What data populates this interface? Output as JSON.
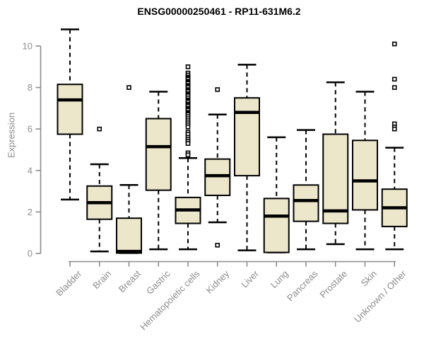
{
  "chart_data": {
    "type": "box",
    "title": "ENSG00000250461 - RP11-631M6.2",
    "xlabel": "",
    "ylabel": "Expression",
    "ylim": [
      0,
      10
    ],
    "yticks": [
      0,
      2,
      4,
      6,
      8,
      10
    ],
    "grid": false,
    "legend": "none",
    "categories": [
      "Bladder",
      "Brain",
      "Breast",
      "Gastric",
      "Hematopoietic cells",
      "Kidney",
      "Liver",
      "Lung",
      "Pancreas",
      "Prostate",
      "Skin",
      "Unknown / Other"
    ],
    "series": [
      {
        "name": "Bladder",
        "whisker_low": 2.6,
        "q1": 5.75,
        "median": 7.4,
        "q3": 8.15,
        "whisker_high": 10.8,
        "outliers": []
      },
      {
        "name": "Brain",
        "whisker_low": 0.1,
        "q1": 1.65,
        "median": 2.45,
        "q3": 3.25,
        "whisker_high": 4.3,
        "outliers": [
          6.0
        ]
      },
      {
        "name": "Breast",
        "whisker_low": 0.02,
        "q1": 0.02,
        "median": 0.1,
        "q3": 1.7,
        "whisker_high": 3.3,
        "outliers": [
          8.0
        ]
      },
      {
        "name": "Gastric",
        "whisker_low": 0.2,
        "q1": 3.05,
        "median": 5.15,
        "q3": 6.5,
        "whisker_high": 7.8,
        "outliers": []
      },
      {
        "name": "Hematopoietic cells",
        "whisker_low": 0.2,
        "q1": 1.45,
        "median": 2.1,
        "q3": 2.7,
        "whisker_high": 4.6,
        "outliers": [
          9.0,
          8.7,
          8.6,
          8.5,
          8.45,
          8.4,
          8.3,
          8.25,
          8.2,
          8.1,
          8.05,
          8.0,
          7.9,
          7.85,
          7.8,
          7.7,
          7.65,
          7.6,
          7.5,
          7.4,
          7.35,
          7.3,
          7.2,
          7.15,
          7.1,
          7.0,
          6.95,
          6.9,
          6.8,
          6.75,
          6.7,
          6.6,
          6.5,
          6.4,
          6.3,
          6.2,
          6.1,
          5.85,
          5.75,
          5.6,
          5.5,
          5.4,
          5.3,
          4.85,
          4.75
        ]
      },
      {
        "name": "Kidney",
        "whisker_low": 1.5,
        "q1": 2.8,
        "median": 3.75,
        "q3": 4.55,
        "whisker_high": 6.7,
        "outliers": [
          7.9,
          0.4
        ]
      },
      {
        "name": "Liver",
        "whisker_low": 0.15,
        "q1": 3.75,
        "median": 6.8,
        "q3": 7.5,
        "whisker_high": 9.1,
        "outliers": []
      },
      {
        "name": "Lung",
        "whisker_low": 0.05,
        "q1": 0.05,
        "median": 1.8,
        "q3": 2.65,
        "whisker_high": 5.6,
        "outliers": []
      },
      {
        "name": "Pancreas",
        "whisker_low": 0.2,
        "q1": 1.55,
        "median": 2.55,
        "q3": 3.3,
        "whisker_high": 5.95,
        "outliers": []
      },
      {
        "name": "Prostate",
        "whisker_low": 0.45,
        "q1": 1.45,
        "median": 2.05,
        "q3": 5.75,
        "whisker_high": 8.25,
        "outliers": []
      },
      {
        "name": "Skin",
        "whisker_low": 0.2,
        "q1": 2.1,
        "median": 3.5,
        "q3": 5.45,
        "whisker_high": 7.8,
        "outliers": []
      },
      {
        "name": "Unknown / Other",
        "whisker_low": 0.2,
        "q1": 1.3,
        "median": 2.2,
        "q3": 3.1,
        "whisker_high": 5.1,
        "outliers": [
          10.1,
          8.4,
          8.0,
          6.25,
          6.1,
          6.0
        ]
      }
    ],
    "colors": {
      "box_fill": "#ECE7CB",
      "box_stroke": "#000000",
      "median": "#000000",
      "whisker": "#000000",
      "outlier_stroke": "#000000",
      "outlier_fill": "#FFFFFF",
      "axis": "#8C8C8C",
      "tick_label": "#8C8C8C",
      "title": "#000000",
      "background": "#FFFFFF"
    }
  }
}
